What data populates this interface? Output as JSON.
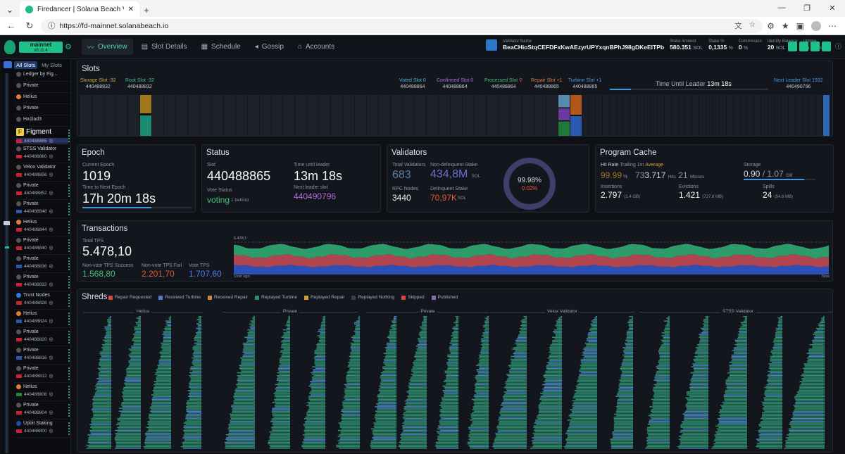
{
  "browser": {
    "tab_title": "Firedancer | Solana Beach Validato",
    "url": "https://fd-mainnet.solanabeach.io"
  },
  "header": {
    "network": "mainnet",
    "version": "v0.11.4",
    "tabs": [
      "Overview",
      "Slot Details",
      "Schedule",
      "Gossip",
      "Accounts"
    ],
    "validator_name_label": "Validator Name",
    "validator_name": "BeaCHioStqCEFDFxKwAEzyrUPYxqnBPhJ98gDKeEITPb",
    "stake_amount_label": "Stake Amount",
    "stake_amount": "580.351",
    "stake_amount_unit": "SOL",
    "stake_pct_label": "Stake %",
    "stake_pct": "0,1335",
    "stake_pct_unit": "%",
    "commission_label": "Commission",
    "commission": "0",
    "commission_unit": "%",
    "identity_balance_label": "Identity Balance",
    "identity_balance": "20",
    "identity_balance_unit": "SOL",
    "uptime_label": "Uptime",
    "uptime_h": "3",
    "uptime_h_unit": "h",
    "uptime_m": "20",
    "uptime_m_unit": "m"
  },
  "sidebar": {
    "tabs": [
      "All Slots",
      "My Slots"
    ],
    "items": [
      {
        "name": "Ledger by Fig...",
        "slot": ""
      },
      {
        "name": "Private",
        "slot": ""
      },
      {
        "name": "Helius",
        "slot": ""
      },
      {
        "name": "Private",
        "slot": ""
      },
      {
        "name": "Ha1lad3",
        "slot": ""
      },
      {
        "name": "Figment",
        "slot": "440488865"
      },
      {
        "name": "STSS Validator",
        "slot": "440488860"
      },
      {
        "name": "Velox Validator",
        "slot": "440488856"
      },
      {
        "name": "Private",
        "slot": "440488852"
      },
      {
        "name": "Private",
        "slot": "440488848"
      },
      {
        "name": "Helius",
        "slot": "440488844"
      },
      {
        "name": "Private",
        "slot": "440488840"
      },
      {
        "name": "Private",
        "slot": "440488836"
      },
      {
        "name": "Private",
        "slot": "440488832"
      },
      {
        "name": "Trust Nodes",
        "slot": "440488828"
      },
      {
        "name": "Helius",
        "slot": "440488824"
      },
      {
        "name": "Private",
        "slot": "440488820"
      },
      {
        "name": "Private",
        "slot": "440488816"
      },
      {
        "name": "Private",
        "slot": "440488812"
      },
      {
        "name": "Helius",
        "slot": "440488808"
      },
      {
        "name": "Private",
        "slot": "440488804"
      },
      {
        "name": "Upbit Staking",
        "slot": "440488800"
      }
    ]
  },
  "slots": {
    "title": "Slots",
    "storage_label": "Storage Slot",
    "storage_delta": "-32",
    "storage_value": "440488832",
    "root_label": "Root Slot",
    "root_delta": "-32",
    "root_value": "440488832",
    "voted_label": "Voted Slot",
    "voted_delta": "0",
    "voted_value": "440488864",
    "confirmed_label": "Confirmed Slot",
    "confirmed_delta": "0",
    "confirmed_value": "440488864",
    "processed_label": "Processed Slot",
    "processed_value": "440488864",
    "repair_label": "Repair Slot",
    "repair_delta": "+1",
    "repair_value": "440488865",
    "turbine_label": "Turbine Slot",
    "turbine_delta": "+1",
    "turbine_value": "440488865",
    "time_until_leader_label": "Time Until Leader",
    "time_until_leader": "13m 18s",
    "next_leader_label": "Next Leader Slot",
    "next_leader_delta": "1932",
    "next_leader_value": "440490796"
  },
  "epoch": {
    "title": "Epoch",
    "current_label": "Current Epoch",
    "current": "1019",
    "next_label": "Time to Next Epoch",
    "next": "17h 20m 18s"
  },
  "status": {
    "title": "Status",
    "slot_label": "Slot",
    "slot": "440488865",
    "til_label": "Time until leader",
    "til": "13m 18s",
    "vote_label": "Vote Status",
    "vote": "voting",
    "vote_note": "1 behind",
    "nls_label": "Next leader slot",
    "nls": "440490796"
  },
  "validators": {
    "title": "Validators",
    "total_label": "Total Validators",
    "total": "683",
    "nd_label": "Non-delinquent Stake",
    "nd": "434,8M",
    "nd_unit": "SOL",
    "rpc_label": "RPC Nodes",
    "rpc": "3440",
    "del_label": "Delinquent Stake",
    "del": "70,97K",
    "del_unit": "SOL",
    "pct_good": "99.98%",
    "pct_bad": "0.02%",
    "ratio": 0.9998
  },
  "program_cache": {
    "title": "Program Cache",
    "hit_label": "Hit Rate",
    "trailing": "Trailing 1m",
    "average": "Average",
    "hit_pct": "99.99",
    "hit_pct_unit": "%",
    "hits_pre": "73",
    "hits": "3.717",
    "hits_unit": "Hits",
    "misses": "21",
    "misses_unit": "Misses",
    "storage_label": "Storage",
    "storage_used": "0.90",
    "storage_sep": "/",
    "storage_total": "1.07",
    "storage_unit": "GB",
    "storage_ratio": 0.84,
    "ins_label": "Insertions",
    "ins": "2.797",
    "ins_sub": "(1.4 GB)",
    "ev_label": "Evictions",
    "ev": "1.421",
    "ev_sub": "(727.6 MB)",
    "sp_label": "Spills",
    "sp": "24",
    "sp_sub": "(54.6 MB)"
  },
  "transactions": {
    "title": "Transactions",
    "total_label": "Total TPS",
    "total": "5.478,10",
    "ok_label": "Non-vote TPS Success",
    "ok": "1.568,80",
    "fail_label": "Non-vote TPS Fail",
    "fail": "2.201,70",
    "vote_label": "Vote TPS",
    "vote": "1.707,60",
    "chart_top": "5.478,1",
    "x_start": "1min ago",
    "x_end": "Now"
  },
  "shreds": {
    "title": "Shreds",
    "legend": [
      {
        "label": "Repair Requested",
        "color": "#c9543c"
      },
      {
        "label": "Received Turbine",
        "color": "#4a7fc1"
      },
      {
        "label": "Received Repair",
        "color": "#c98a3c"
      },
      {
        "label": "Replayed Turbine",
        "color": "#2e8b6e"
      },
      {
        "label": "Replayed Repair",
        "color": "#d09b3a"
      },
      {
        "label": "Replayed Nothing",
        "color": "#3a3f4b"
      },
      {
        "label": "Skipped",
        "color": "#d24a3a"
      },
      {
        "label": "Published",
        "color": "#8a6ab0"
      }
    ],
    "leaders": [
      "Helius",
      "Private",
      "Private",
      "Velox Validator",
      "STSS Validator"
    ]
  },
  "colors": {
    "accent": "#1fc18a",
    "tps_success": "#2e9b6b",
    "tps_fail": "#c0504d",
    "tps_vote": "#2d4fb8"
  }
}
